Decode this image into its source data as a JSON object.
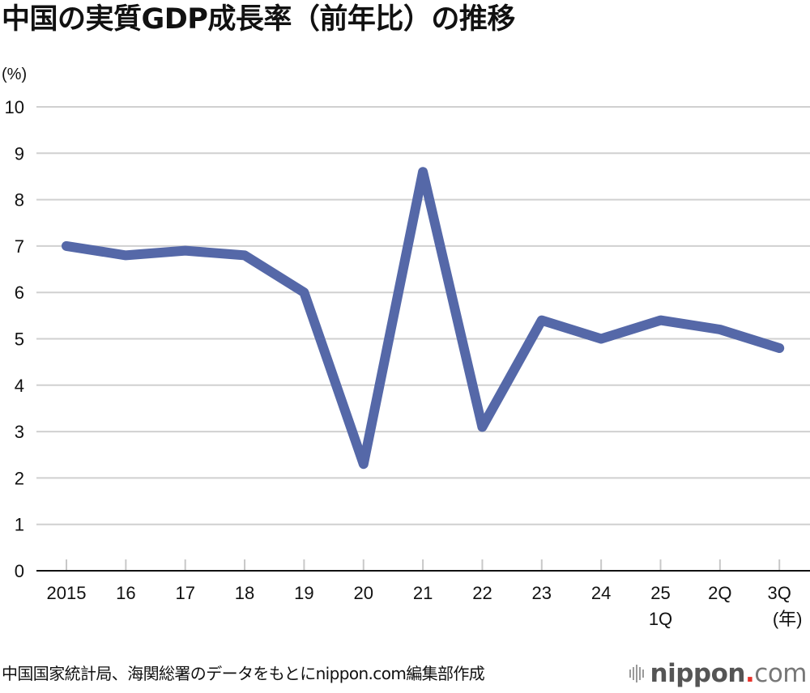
{
  "title": "中国の実質GDP成長率（前年比）の推移",
  "unit_label": "(%)",
  "footer": {
    "source": "中国国家統計局、海関総署のデータをもとにnippon.com編集部作成",
    "logo": {
      "brand": "nippon",
      "dot": ".",
      "tld": "com",
      "icon": "sound-bars-icon"
    }
  },
  "colors": {
    "line": "#5568a8",
    "grid": "#d0d0d0",
    "axis": "#111111",
    "tick": "#c8c8c8",
    "logo_dot": "#e8322b"
  },
  "chart_data": {
    "type": "line",
    "title": "中国の実質GDP成長率（前年比）の推移",
    "xlabel": "(年)",
    "ylabel": "(%)",
    "ylim": [
      0,
      10
    ],
    "yticks": [
      0,
      1,
      2,
      3,
      4,
      5,
      6,
      7,
      8,
      9,
      10
    ],
    "grid": true,
    "legend": null,
    "categories": [
      "2015",
      "16",
      "17",
      "18",
      "19",
      "20",
      "21",
      "22",
      "23",
      "24",
      "25 1Q",
      "2Q",
      "3Q"
    ],
    "category_labels": [
      [
        "2015"
      ],
      [
        "16"
      ],
      [
        "17"
      ],
      [
        "18"
      ],
      [
        "19"
      ],
      [
        "20"
      ],
      [
        "21"
      ],
      [
        "22"
      ],
      [
        "23"
      ],
      [
        "24"
      ],
      [
        "25",
        "1Q"
      ],
      [
        "2Q"
      ],
      [
        "3Q",
        "(年)"
      ]
    ],
    "series": [
      {
        "name": "実質GDP成長率",
        "values": [
          7.0,
          6.8,
          6.9,
          6.8,
          6.0,
          2.3,
          8.6,
          3.1,
          5.4,
          5.0,
          5.4,
          5.2,
          4.8
        ]
      }
    ]
  }
}
